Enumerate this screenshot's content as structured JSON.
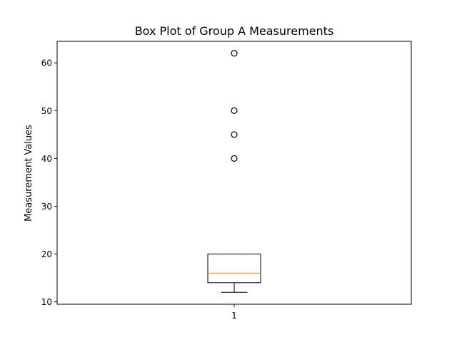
{
  "chart_data": {
    "type": "box",
    "title": "Box Plot of Group A Measurements",
    "xlabel": "",
    "ylabel": "Measurement Values",
    "categories": [
      "1"
    ],
    "ylim": [
      9.5,
      64.5
    ],
    "yticks": [
      10,
      20,
      30,
      40,
      50,
      60
    ],
    "boxes": [
      {
        "category": "1",
        "whisker_low": 12,
        "q1": 14,
        "median": 16,
        "q3": 20,
        "whisker_high": 20,
        "outliers": [
          40,
          45,
          50,
          62
        ]
      }
    ],
    "grid": false,
    "colors": {
      "box": "#000000",
      "median": "#ff7f0e",
      "outlier": "#000000"
    }
  }
}
